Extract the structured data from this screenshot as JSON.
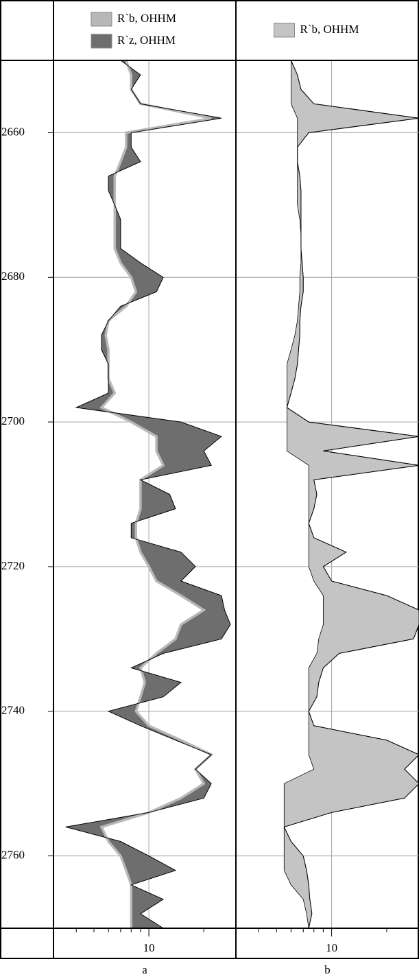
{
  "chart_data": [
    {
      "type": "line",
      "label": "a",
      "log_x": true,
      "grid": true,
      "xlim": [
        3,
        30
      ],
      "xticks": [
        10
      ],
      "minor_xticks": [
        4,
        5,
        6,
        7,
        8,
        9,
        20,
        30
      ],
      "ylim": [
        2650,
        2770
      ],
      "yticks": [
        2660,
        2680,
        2700,
        2720,
        2740,
        2760
      ],
      "depth": [
        2650,
        2652,
        2654,
        2656,
        2658,
        2660,
        2662,
        2664,
        2666,
        2668,
        2670,
        2672,
        2674,
        2676,
        2678,
        2680,
        2682,
        2684,
        2686,
        2688,
        2690,
        2692,
        2694,
        2696,
        2698,
        2700,
        2702,
        2704,
        2706,
        2708,
        2710,
        2712,
        2714,
        2716,
        2718,
        2720,
        2722,
        2724,
        2726,
        2728,
        2730,
        2732,
        2734,
        2736,
        2738,
        2740,
        2742,
        2744,
        2746,
        2748,
        2750,
        2752,
        2754,
        2756,
        2758,
        2760,
        2762,
        2764,
        2766,
        2768,
        2770
      ],
      "series": [
        {
          "name": "R`b, OHHM",
          "color": "#b8b8b8",
          "values": [
            7.5,
            8,
            8,
            9,
            22,
            7.5,
            7.5,
            7,
            6.5,
            6.5,
            6.5,
            6.5,
            6.5,
            6.5,
            7,
            8,
            8.5,
            7.5,
            6,
            5.8,
            6,
            6,
            6,
            6.5,
            5.5,
            8,
            11,
            11,
            12,
            9,
            9,
            9,
            8.5,
            8.5,
            9,
            10,
            11,
            15,
            20,
            15,
            14,
            11,
            9,
            9.5,
            9,
            8.5,
            10,
            15,
            22,
            18,
            20,
            15,
            10,
            5.5,
            6,
            7,
            7.5,
            8,
            8,
            8,
            8
          ]
        },
        {
          "name": "R`z, OHHM",
          "color": "#6e6e6e",
          "values": [
            7,
            9,
            8,
            9,
            25,
            8,
            8,
            9,
            6,
            6,
            6.5,
            7,
            7,
            7,
            9,
            12,
            11,
            7,
            6,
            5.5,
            5.5,
            6,
            6,
            6,
            4,
            15,
            25,
            20,
            22,
            9,
            13,
            14,
            8,
            8,
            15,
            18,
            15,
            25,
            26,
            28,
            25,
            12,
            8,
            15,
            12,
            6,
            9,
            14,
            22,
            18,
            22,
            20,
            10,
            3.5,
            7,
            10,
            14,
            8,
            12,
            9,
            12
          ]
        }
      ]
    },
    {
      "type": "line",
      "label": "b",
      "log_x": true,
      "grid": true,
      "xlim": [
        3,
        30
      ],
      "xticks": [
        10
      ],
      "minor_xticks": [
        4,
        5,
        6,
        7,
        8,
        9,
        20,
        30
      ],
      "ylim": [
        2650,
        2770
      ],
      "yticks": [
        2660,
        2680,
        2700,
        2720,
        2740,
        2760
      ],
      "depth": [
        2650,
        2652,
        2654,
        2656,
        2658,
        2660,
        2662,
        2664,
        2666,
        2668,
        2670,
        2672,
        2674,
        2676,
        2678,
        2680,
        2682,
        2684,
        2686,
        2688,
        2690,
        2692,
        2694,
        2696,
        2698,
        2700,
        2702,
        2704,
        2706,
        2708,
        2710,
        2712,
        2714,
        2716,
        2718,
        2720,
        2722,
        2724,
        2726,
        2728,
        2730,
        2732,
        2734,
        2736,
        2738,
        2740,
        2742,
        2744,
        2746,
        2748,
        2750,
        2752,
        2754,
        2756,
        2758,
        2760,
        2762,
        2764,
        2766,
        2768,
        2770
      ],
      "series": [
        {
          "name": "R`b, OHHM",
          "color": "#c4c4c4",
          "values": [
            6,
            6.5,
            6.8,
            8,
            30,
            7.5,
            6.5,
            6.5,
            6.7,
            6.8,
            6.8,
            6.8,
            6.8,
            6.8,
            6.9,
            7,
            7,
            6.8,
            6.7,
            6.7,
            6.6,
            6.5,
            6.3,
            6,
            5.7,
            7.5,
            30,
            9,
            30,
            8,
            8.3,
            8,
            7.5,
            8,
            12,
            9,
            10,
            20,
            30,
            30,
            28,
            11,
            9,
            8.5,
            8.3,
            7.5,
            8,
            20,
            30,
            25,
            30,
            25,
            10,
            5.5,
            6,
            7,
            7.3,
            7.5,
            7.6,
            7.8,
            7.5
          ]
        }
      ]
    }
  ]
}
